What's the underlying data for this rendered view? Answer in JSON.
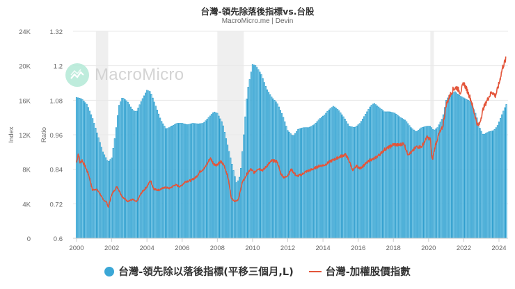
{
  "header": {
    "title": "台灣-領先除落後指標vs.台股",
    "subtitle": "MacroMicro.me | Devin"
  },
  "watermark": {
    "text": "MacroMicro"
  },
  "legend": [
    {
      "label": "台灣-領先除以落後指標(平移三個月,L)",
      "color": "#3ba7d6",
      "shape": "circle"
    },
    {
      "label": "台灣-加權股價指數",
      "color": "#e3553a",
      "shape": "line"
    }
  ],
  "axes": {
    "left": {
      "title": "Index",
      "ticks": [
        "0",
        "4K",
        "8K",
        "12K",
        "16K",
        "20K",
        "24K"
      ]
    },
    "right": {
      "title": "Ratio",
      "ticks": [
        "0.6",
        "0.72",
        "0.84",
        "0.96",
        "1.08",
        "1.2",
        "1.32"
      ]
    },
    "x": {
      "ticks": [
        "2000",
        "2002",
        "2004",
        "2006",
        "2008",
        "2010",
        "2012",
        "2014",
        "2016",
        "2018",
        "2020",
        "2022",
        "2024"
      ]
    }
  },
  "colors": {
    "bar_fill": "#7fcbe9",
    "bar_stroke": "#2b9ccc",
    "line": "#e3553a",
    "grid": "#e8e8e8",
    "recession": "#efefef"
  },
  "chart_data": {
    "type": "bar+line",
    "title": "台灣-領先除落後指標vs.台股",
    "subtitle": "MacroMicro.me | Devin",
    "xlabel": "",
    "x_range": [
      1999.9,
      2024.6
    ],
    "recession_bands": [
      [
        2001.1,
        2001.8
      ],
      [
        2008.0,
        2009.5
      ],
      [
        2020.1,
        2020.3
      ]
    ],
    "y_left": {
      "label": "Index",
      "range": [
        0,
        24000
      ],
      "ticks": [
        0,
        4000,
        8000,
        12000,
        16000,
        20000,
        24000
      ]
    },
    "y_right": {
      "label": "Ratio",
      "range": [
        0.6,
        1.32
      ],
      "ticks": [
        0.6,
        0.72,
        0.84,
        0.96,
        1.08,
        1.2,
        1.32
      ]
    },
    "series": [
      {
        "name": "台灣-領先除以落後指標(平移三個月,L)",
        "type": "bar",
        "axis": "right",
        "points": [
          [
            2000.0,
            1.09
          ],
          [
            2000.3,
            1.085
          ],
          [
            2000.6,
            1.065
          ],
          [
            2000.9,
            1.02
          ],
          [
            2001.2,
            0.96
          ],
          [
            2001.5,
            0.9
          ],
          [
            2001.8,
            0.865
          ],
          [
            2002.0,
            0.88
          ],
          [
            2002.2,
            0.96
          ],
          [
            2002.4,
            1.06
          ],
          [
            2002.6,
            1.09
          ],
          [
            2002.9,
            1.075
          ],
          [
            2003.2,
            1.045
          ],
          [
            2003.4,
            1.04
          ],
          [
            2003.7,
            1.08
          ],
          [
            2004.0,
            1.115
          ],
          [
            2004.2,
            1.11
          ],
          [
            2004.5,
            1.06
          ],
          [
            2004.8,
            1.01
          ],
          [
            2005.1,
            0.98
          ],
          [
            2005.4,
            0.99
          ],
          [
            2005.7,
            1.0
          ],
          [
            2006.0,
            1.0
          ],
          [
            2006.3,
            0.995
          ],
          [
            2006.6,
            1.0
          ],
          [
            2006.9,
            0.998
          ],
          [
            2007.2,
            1.0
          ],
          [
            2007.5,
            1.02
          ],
          [
            2007.8,
            1.04
          ],
          [
            2008.0,
            1.035
          ],
          [
            2008.3,
            1.0
          ],
          [
            2008.6,
            0.92
          ],
          [
            2008.9,
            0.84
          ],
          [
            2009.1,
            0.79
          ],
          [
            2009.3,
            0.82
          ],
          [
            2009.5,
            0.96
          ],
          [
            2009.7,
            1.11
          ],
          [
            2010.0,
            1.205
          ],
          [
            2010.2,
            1.2
          ],
          [
            2010.5,
            1.17
          ],
          [
            2010.8,
            1.12
          ],
          [
            2011.1,
            1.09
          ],
          [
            2011.4,
            1.07
          ],
          [
            2011.7,
            1.03
          ],
          [
            2012.0,
            0.975
          ],
          [
            2012.3,
            0.955
          ],
          [
            2012.6,
            0.98
          ],
          [
            2012.9,
            0.985
          ],
          [
            2013.2,
            0.985
          ],
          [
            2013.5,
            0.995
          ],
          [
            2013.8,
            1.015
          ],
          [
            2014.1,
            1.03
          ],
          [
            2014.3,
            1.045
          ],
          [
            2014.6,
            1.06
          ],
          [
            2014.9,
            1.045
          ],
          [
            2015.2,
            1.02
          ],
          [
            2015.5,
            0.99
          ],
          [
            2015.8,
            0.985
          ],
          [
            2016.1,
            1.0
          ],
          [
            2016.4,
            1.03
          ],
          [
            2016.7,
            1.06
          ],
          [
            2016.9,
            1.07
          ],
          [
            2017.2,
            1.055
          ],
          [
            2017.5,
            1.04
          ],
          [
            2017.8,
            1.04
          ],
          [
            2018.1,
            1.035
          ],
          [
            2018.4,
            1.02
          ],
          [
            2018.7,
            1.01
          ],
          [
            2019.0,
            0.985
          ],
          [
            2019.3,
            0.97
          ],
          [
            2019.6,
            0.985
          ],
          [
            2019.9,
            0.99
          ],
          [
            2020.1,
            0.99
          ],
          [
            2020.3,
            0.975
          ],
          [
            2020.5,
            0.985
          ],
          [
            2020.8,
            1.02
          ],
          [
            2021.0,
            1.08
          ],
          [
            2021.2,
            1.1
          ],
          [
            2021.5,
            1.11
          ],
          [
            2021.8,
            1.095
          ],
          [
            2022.1,
            1.085
          ],
          [
            2022.4,
            1.075
          ],
          [
            2022.7,
            1.03
          ],
          [
            2022.9,
            0.985
          ],
          [
            2023.1,
            0.96
          ],
          [
            2023.4,
            0.97
          ],
          [
            2023.7,
            0.975
          ],
          [
            2023.9,
            0.99
          ],
          [
            2024.1,
            1.02
          ],
          [
            2024.3,
            1.05
          ],
          [
            2024.45,
            1.07
          ]
        ]
      },
      {
        "name": "台灣-加權股價指數",
        "type": "line",
        "axis": "left",
        "points": [
          [
            2000.0,
            8800
          ],
          [
            2000.1,
            9800
          ],
          [
            2000.2,
            8700
          ],
          [
            2000.3,
            9100
          ],
          [
            2000.5,
            8300
          ],
          [
            2000.7,
            7300
          ],
          [
            2000.9,
            5600
          ],
          [
            2001.1,
            5700
          ],
          [
            2001.3,
            5300
          ],
          [
            2001.5,
            4500
          ],
          [
            2001.7,
            4200
          ],
          [
            2001.8,
            3600
          ],
          [
            2002.0,
            5100
          ],
          [
            2002.3,
            6000
          ],
          [
            2002.6,
            4800
          ],
          [
            2002.9,
            4300
          ],
          [
            2003.2,
            4500
          ],
          [
            2003.4,
            4200
          ],
          [
            2003.7,
            5300
          ],
          [
            2004.0,
            6000
          ],
          [
            2004.2,
            6700
          ],
          [
            2004.4,
            5700
          ],
          [
            2004.7,
            5600
          ],
          [
            2005.0,
            5900
          ],
          [
            2005.3,
            5800
          ],
          [
            2005.6,
            6200
          ],
          [
            2005.9,
            6000
          ],
          [
            2006.2,
            6600
          ],
          [
            2006.5,
            6700
          ],
          [
            2006.8,
            7100
          ],
          [
            2007.0,
            7700
          ],
          [
            2007.3,
            8200
          ],
          [
            2007.6,
            9300
          ],
          [
            2007.8,
            8600
          ],
          [
            2008.0,
            8500
          ],
          [
            2008.2,
            8900
          ],
          [
            2008.4,
            8400
          ],
          [
            2008.6,
            7100
          ],
          [
            2008.8,
            4600
          ],
          [
            2009.0,
            4300
          ],
          [
            2009.2,
            4500
          ],
          [
            2009.4,
            6400
          ],
          [
            2009.7,
            7500
          ],
          [
            2009.9,
            8000
          ],
          [
            2010.1,
            7600
          ],
          [
            2010.3,
            8100
          ],
          [
            2010.6,
            7900
          ],
          [
            2010.9,
            8600
          ],
          [
            2011.1,
            9000
          ],
          [
            2011.4,
            8900
          ],
          [
            2011.6,
            7500
          ],
          [
            2011.8,
            7000
          ],
          [
            2012.0,
            7300
          ],
          [
            2012.2,
            8000
          ],
          [
            2012.5,
            7200
          ],
          [
            2012.8,
            7400
          ],
          [
            2013.0,
            7700
          ],
          [
            2013.4,
            8000
          ],
          [
            2013.8,
            8400
          ],
          [
            2014.1,
            8500
          ],
          [
            2014.4,
            8900
          ],
          [
            2014.7,
            9200
          ],
          [
            2015.0,
            9500
          ],
          [
            2015.3,
            9700
          ],
          [
            2015.5,
            8900
          ],
          [
            2015.7,
            7800
          ],
          [
            2015.9,
            8400
          ],
          [
            2016.1,
            8100
          ],
          [
            2016.4,
            8600
          ],
          [
            2016.7,
            9100
          ],
          [
            2016.9,
            9200
          ],
          [
            2017.2,
            9700
          ],
          [
            2017.5,
            10300
          ],
          [
            2017.8,
            10600
          ],
          [
            2018.0,
            10900
          ],
          [
            2018.3,
            10800
          ],
          [
            2018.6,
            11000
          ],
          [
            2018.8,
            9800
          ],
          [
            2019.0,
            9900
          ],
          [
            2019.3,
            10600
          ],
          [
            2019.6,
            10600
          ],
          [
            2019.9,
            11700
          ],
          [
            2020.1,
            11500
          ],
          [
            2020.2,
            9000
          ],
          [
            2020.4,
            10900
          ],
          [
            2020.6,
            12100
          ],
          [
            2020.8,
            12900
          ],
          [
            2021.0,
            15500
          ],
          [
            2021.2,
            16500
          ],
          [
            2021.4,
            17300
          ],
          [
            2021.6,
            17500
          ],
          [
            2021.8,
            16900
          ],
          [
            2022.0,
            18000
          ],
          [
            2022.2,
            17100
          ],
          [
            2022.4,
            16100
          ],
          [
            2022.6,
            14500
          ],
          [
            2022.8,
            13000
          ],
          [
            2022.9,
            13300
          ],
          [
            2023.1,
            15000
          ],
          [
            2023.4,
            16300
          ],
          [
            2023.6,
            17000
          ],
          [
            2023.8,
            16500
          ],
          [
            2024.0,
            17900
          ],
          [
            2024.2,
            19800
          ],
          [
            2024.4,
            20800
          ]
        ]
      }
    ],
    "legend_position": "bottom",
    "grid": true
  }
}
